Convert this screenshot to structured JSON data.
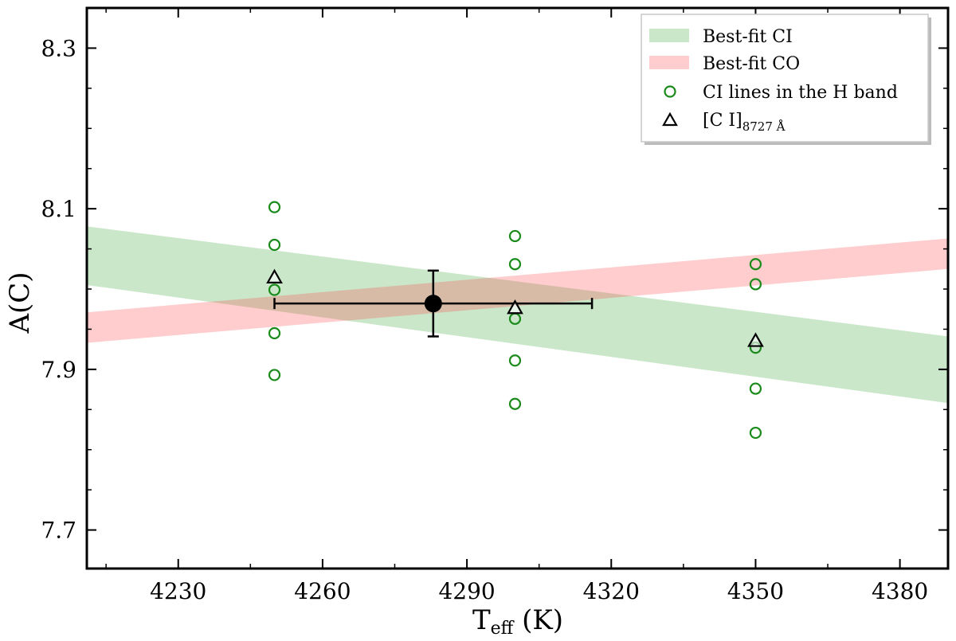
{
  "chart_data": {
    "type": "scatter",
    "xlabel": "T",
    "xlabel_sub": "eff",
    "xlabel_unit": " (K)",
    "ylabel": "A(C)",
    "xlim": [
      4211,
      4390
    ],
    "ylim": [
      7.652,
      8.35
    ],
    "xticks": [
      4230,
      4260,
      4290,
      4320,
      4350,
      4380
    ],
    "yticks": [
      7.7,
      7.9,
      8.1,
      8.3
    ],
    "ytick_labels": [
      "7.7",
      "7.9",
      "8.1",
      "8.3"
    ],
    "bands": [
      {
        "name": "Best-fit CI",
        "color": "#2ca02c",
        "opacity": 0.25,
        "x": [
          4211,
          4390
        ],
        "lower": [
          8.005,
          7.858
        ],
        "upper": [
          8.078,
          7.941
        ]
      },
      {
        "name": "Best-fit CO",
        "color": "#ff4d4d",
        "opacity": 0.28,
        "x": [
          4211,
          4390
        ],
        "lower": [
          7.933,
          8.025
        ],
        "upper": [
          7.971,
          8.063
        ]
      }
    ],
    "ci_lines": {
      "name": "CI lines in the H band",
      "color": "#1a8a1a",
      "points": [
        {
          "x": 4250,
          "y": 8.102
        },
        {
          "x": 4250,
          "y": 8.055
        },
        {
          "x": 4250,
          "y": 7.999
        },
        {
          "x": 4250,
          "y": 7.945
        },
        {
          "x": 4250,
          "y": 7.893
        },
        {
          "x": 4300,
          "y": 8.066
        },
        {
          "x": 4300,
          "y": 8.031
        },
        {
          "x": 4300,
          "y": 7.963
        },
        {
          "x": 4300,
          "y": 7.911
        },
        {
          "x": 4300,
          "y": 7.857
        },
        {
          "x": 4350,
          "y": 8.031
        },
        {
          "x": 4350,
          "y": 8.006
        },
        {
          "x": 4350,
          "y": 7.927
        },
        {
          "x": 4350,
          "y": 7.876
        },
        {
          "x": 4350,
          "y": 7.821
        }
      ]
    },
    "ci_8727": {
      "name": "[C I]",
      "name_sub": "8727 Å",
      "color": "#000000",
      "points": [
        {
          "x": 4250,
          "y": 8.014
        },
        {
          "x": 4300,
          "y": 7.976
        },
        {
          "x": 4350,
          "y": 7.935
        }
      ]
    },
    "best_point": {
      "x": 4283,
      "y": 7.982,
      "xerr": 33,
      "yerr_low": 0.041,
      "yerr_high": 0.041
    },
    "legend": {
      "placement": "top-right",
      "entries": [
        "Best-fit CI",
        "Best-fit CO",
        "CI lines in the H band",
        "[C I]"
      ]
    }
  }
}
